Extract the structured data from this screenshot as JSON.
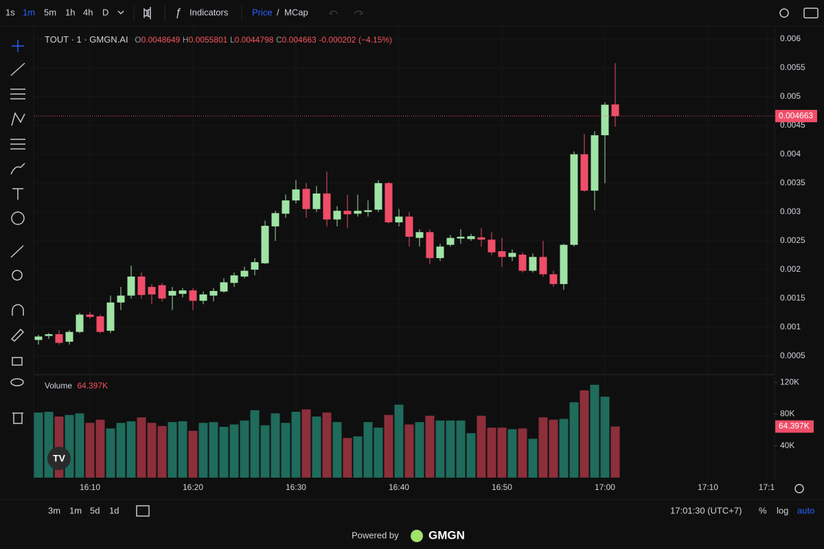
{
  "toolbar": {
    "intervals": [
      "1s",
      "1m",
      "5m",
      "1h",
      "4h",
      "D"
    ],
    "indicators": "Indicators",
    "price": "Price",
    "separator": "/",
    "mcap": "MCap"
  },
  "chart_data": {
    "type": "candlestick",
    "symbol": "TOUT · 1 · GMGN.AI",
    "ohlc_letters": [
      "O",
      "H",
      "L",
      "C"
    ],
    "change": -0.000202,
    "change_pct": {
      "value": -4.15,
      "label": "(−4.15%)"
    },
    "volume_title": "Volume",
    "volume_last_label": "64.397K",
    "up_color": "#9fe3a5",
    "down_color": "#ef4d68",
    "volume_up_color": "#1f6b5c",
    "volume_down_color": "#8c2f3b",
    "grid": true,
    "x": [
      965,
      966,
      967,
      968,
      969,
      970,
      971,
      972,
      973,
      974,
      975,
      976,
      977,
      978,
      979,
      980,
      981,
      982,
      983,
      984,
      985,
      986,
      987,
      988,
      989,
      990,
      991,
      992,
      993,
      994,
      995,
      996,
      997,
      998,
      999,
      1000,
      1001,
      1002,
      1003,
      1004,
      1005,
      1006,
      1007,
      1008,
      1009,
      1010,
      1011,
      1012,
      1013,
      1014,
      1015,
      1016,
      1017,
      1018,
      1019,
      1020,
      1021
    ],
    "open": [
      0.00078,
      0.00085,
      0.00088,
      0.00075,
      0.00092,
      0.00122,
      0.00119,
      0.00094,
      0.00143,
      0.00155,
      0.00188,
      0.0017,
      0.00173,
      0.00155,
      0.00158,
      0.00164,
      0.00146,
      0.00155,
      0.00162,
      0.00177,
      0.00188,
      0.002,
      0.00211,
      0.00275,
      0.00297,
      0.0032,
      0.0034,
      0.00305,
      0.00332,
      0.00287,
      0.00302,
      0.00297,
      0.003,
      0.00304,
      0.0035,
      0.00282,
      0.00292,
      0.00255,
      0.00265,
      0.0022,
      0.00243,
      0.00254,
      0.00253,
      0.00256,
      0.00252,
      0.00232,
      0.00222,
      0.00226,
      0.00198,
      0.00222,
      0.00192,
      0.00175,
      0.00243,
      0.004,
      0.00337,
      0.00433,
      0.0048649
    ],
    "high": [
      0.00087,
      0.0009,
      0.00095,
      0.00095,
      0.00125,
      0.00127,
      0.00122,
      0.00155,
      0.0017,
      0.00207,
      0.00195,
      0.00175,
      0.00177,
      0.0017,
      0.00168,
      0.00168,
      0.00162,
      0.00168,
      0.00185,
      0.00195,
      0.00205,
      0.0022,
      0.00285,
      0.00302,
      0.0033,
      0.00355,
      0.0035,
      0.00345,
      0.0037,
      0.0031,
      0.0033,
      0.0033,
      0.0032,
      0.00355,
      0.00352,
      0.00305,
      0.003,
      0.0027,
      0.0027,
      0.00245,
      0.0026,
      0.0027,
      0.00262,
      0.00272,
      0.00265,
      0.00255,
      0.00235,
      0.0023,
      0.00228,
      0.0025,
      0.00198,
      0.00245,
      0.00405,
      0.00435,
      0.0044,
      0.0049,
      0.0055801
    ],
    "low": [
      0.0007,
      0.0008,
      0.0007,
      0.0007,
      0.0009,
      0.00115,
      0.0009,
      0.0009,
      0.0013,
      0.0015,
      0.0015,
      0.0014,
      0.00145,
      0.0013,
      0.00152,
      0.0013,
      0.0014,
      0.00145,
      0.0016,
      0.0017,
      0.00185,
      0.0019,
      0.0021,
      0.0025,
      0.0029,
      0.00315,
      0.0029,
      0.003,
      0.00275,
      0.00275,
      0.00272,
      0.00292,
      0.00292,
      0.003,
      0.0028,
      0.00275,
      0.0024,
      0.0024,
      0.0021,
      0.00215,
      0.0024,
      0.00245,
      0.0025,
      0.0024,
      0.00225,
      0.00205,
      0.00215,
      0.00195,
      0.00195,
      0.00188,
      0.0017,
      0.00165,
      0.0024,
      0.00335,
      0.00303,
      0.0035,
      0.0044798
    ],
    "close": [
      0.00084,
      0.00088,
      0.00073,
      0.00092,
      0.00122,
      0.00118,
      0.00092,
      0.00143,
      0.00155,
      0.00188,
      0.00156,
      0.00157,
      0.0015,
      0.00163,
      0.00164,
      0.00146,
      0.00157,
      0.00163,
      0.00178,
      0.0019,
      0.00198,
      0.00213,
      0.00276,
      0.00298,
      0.0032,
      0.00339,
      0.00305,
      0.00332,
      0.00287,
      0.00302,
      0.00296,
      0.00302,
      0.00303,
      0.0035,
      0.00282,
      0.00292,
      0.00257,
      0.00265,
      0.0022,
      0.0024,
      0.00255,
      0.00257,
      0.00258,
      0.00252,
      0.0023,
      0.00222,
      0.00229,
      0.00198,
      0.00222,
      0.00192,
      0.00175,
      0.00243,
      0.004,
      0.00337,
      0.00433,
      0.00486,
      0.004663
    ],
    "volume": [
      82000,
      83000,
      77000,
      79000,
      81000,
      69000,
      73000,
      62000,
      69000,
      71000,
      76000,
      69000,
      65000,
      70000,
      71000,
      59000,
      69000,
      70000,
      64000,
      67000,
      72000,
      85000,
      66000,
      81000,
      69000,
      83000,
      86000,
      77000,
      82000,
      70000,
      50000,
      52000,
      70000,
      63000,
      79000,
      92000,
      67000,
      70000,
      78000,
      72000,
      72000,
      72000,
      56000,
      78000,
      63000,
      63000,
      61000,
      62000,
      49000,
      76000,
      73000,
      74000,
      95000,
      110000,
      117000,
      102000,
      64397
    ],
    "xlim": [
      964.6,
      1036.47
    ],
    "xticks": [
      {
        "value": 970,
        "label": "16:10"
      },
      {
        "value": 980,
        "label": "16:20"
      },
      {
        "value": 990,
        "label": "16:30"
      },
      {
        "value": 1000,
        "label": "16:40"
      },
      {
        "value": 1010,
        "label": "16:50"
      },
      {
        "value": 1020,
        "label": "17:00"
      },
      {
        "value": 1030,
        "label": "17:10"
      },
      {
        "value": 1035.7,
        "label": "17:1"
      }
    ],
    "ylim": [
      0.00019,
      0.00614
    ],
    "yticks": [
      0.0005,
      0.001,
      0.0015,
      0.002,
      0.0025,
      0.003,
      0.0035,
      0.004,
      0.0045,
      0.005,
      0.0055,
      0.006
    ],
    "volume_lim": [
      0,
      128000
    ],
    "volume_ticks": [
      {
        "value": 40000,
        "label": "40K"
      },
      {
        "value": 80000,
        "label": "80K"
      },
      {
        "value": 120000,
        "label": "120K"
      }
    ]
  },
  "footer": {
    "ranges": [
      "3m",
      "1m",
      "5d",
      "1d"
    ],
    "time": "17:01:30 (UTC+7)",
    "scale_options": [
      "%",
      "log",
      "auto"
    ],
    "powered_by": "Powered by",
    "brand": "GMGN"
  }
}
